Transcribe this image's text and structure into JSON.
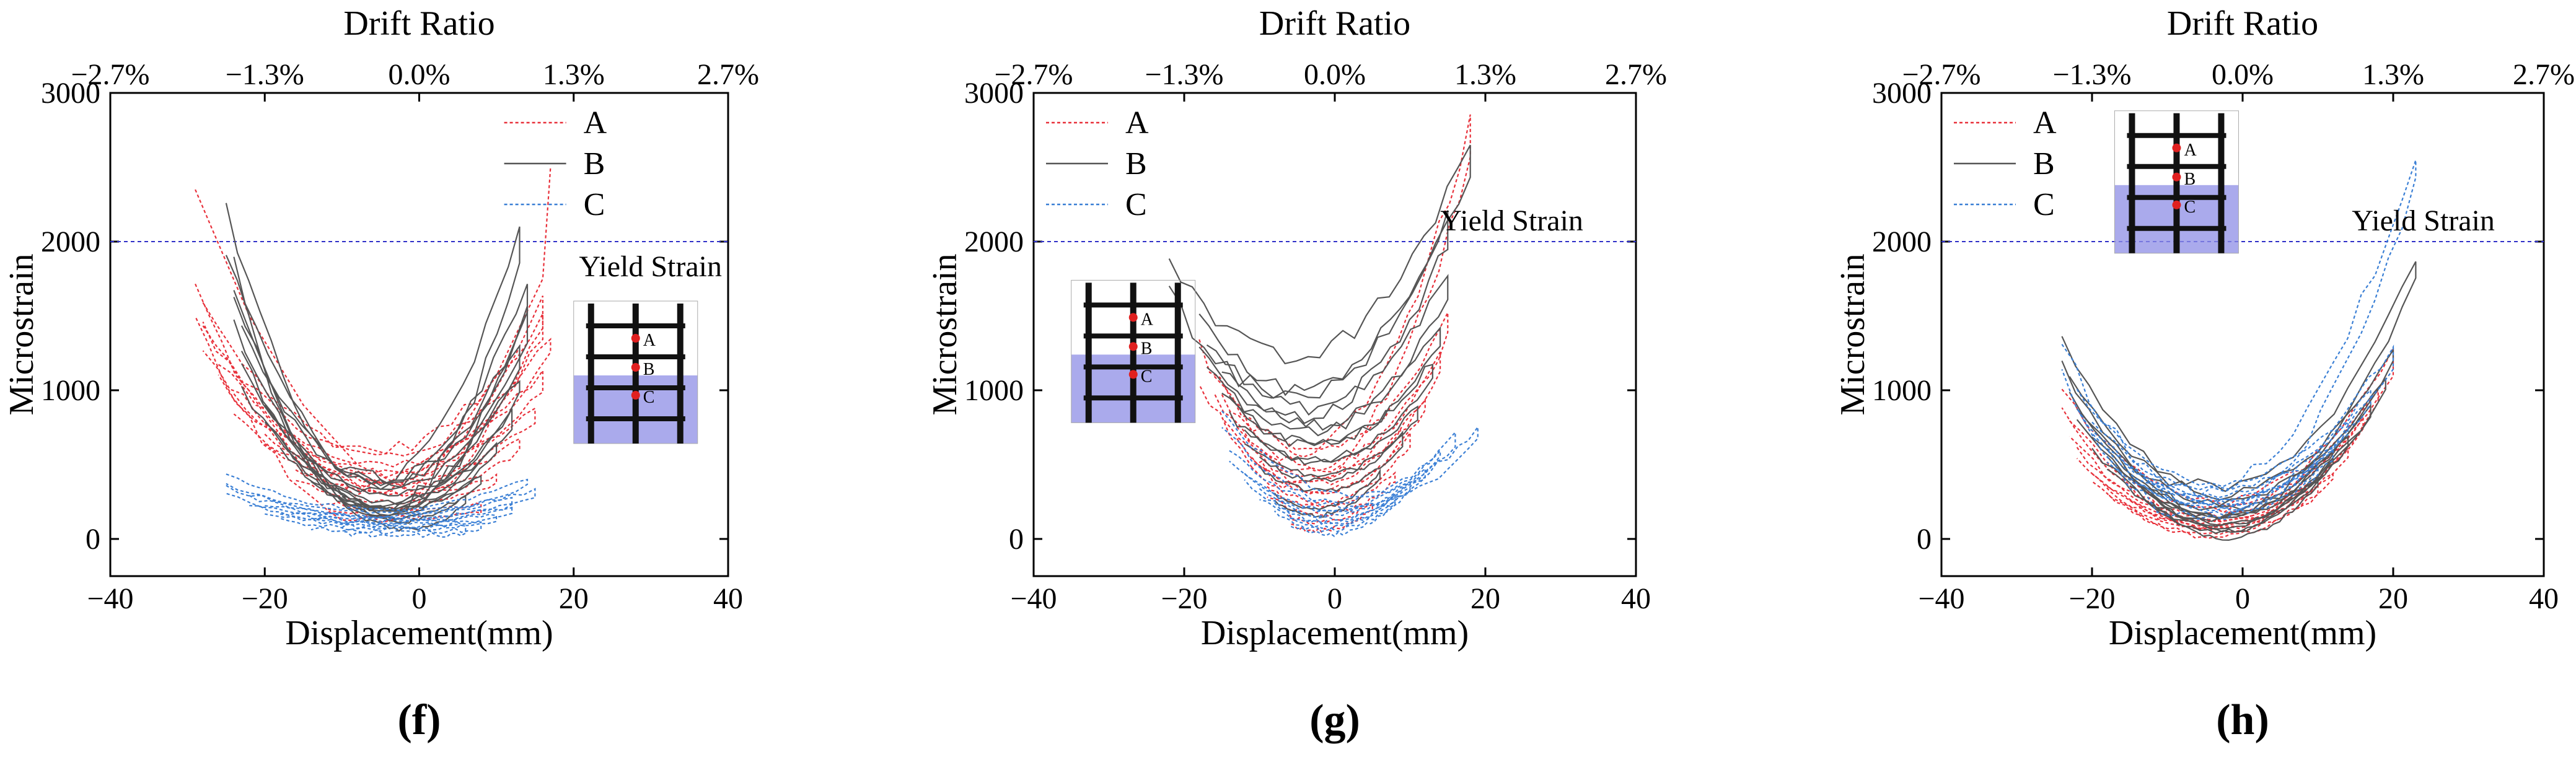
{
  "chart_data": [
    {
      "type": "line",
      "panel_label": "(f)",
      "top_axis_title": "Drift Ratio",
      "top_ticks": [
        "−2.7%",
        "−1.3%",
        "0.0%",
        "1.3%",
        "2.7%"
      ],
      "top_tick_positions": [
        -40,
        -20,
        0,
        20,
        40
      ],
      "xlabel": "Displacement(mm)",
      "ylabel": "Microstrain",
      "xlim": [
        -40,
        40
      ],
      "ylim": [
        -250,
        3000
      ],
      "xticks": [
        -40,
        -20,
        0,
        20,
        40
      ],
      "yticks": [
        0,
        1000,
        2000,
        3000
      ],
      "xtick_labels": [
        "−40",
        "−20",
        "0",
        "20",
        "40"
      ],
      "ytick_labels": [
        "0",
        "1000",
        "2000",
        "3000"
      ],
      "yield_strain": 2000,
      "yield_label": "Yield Strain",
      "legend_position": "top-right",
      "series": [
        {
          "name": "A",
          "color": "#e8303a",
          "style": "dotted",
          "cycles": [
            [
              -29,
              16,
              1700,
              300
            ],
            [
              -28,
              16,
              1600,
              600
            ],
            [
              -28,
              17,
              1450,
              560
            ],
            [
              -26,
              16,
              1200,
              500
            ],
            [
              -24,
              15,
              950,
              450
            ],
            [
              -20,
              13,
              700,
              380
            ],
            [
              -16,
              10,
              450,
              300
            ],
            [
              -12,
              8,
              250,
              200
            ]
          ],
          "envelope": [
            [
              -29,
              2350
            ],
            [
              -22,
              1500
            ],
            [
              -15,
              900
            ],
            [
              -8,
              500
            ],
            [
              0,
              300
            ],
            [
              10,
              1100
            ],
            [
              16,
              1750
            ],
            [
              17,
              2500
            ]
          ]
        },
        {
          "name": "B",
          "color": "#555555",
          "style": "solid",
          "cycles": [
            [
              -25,
              13,
              2200,
              400
            ],
            [
              -24,
              14,
              1850,
              380
            ],
            [
              -24,
              14,
              1600,
              380
            ],
            [
              -23,
              13,
              1400,
              360
            ],
            [
              -23,
              13,
              1150,
              320
            ],
            [
              -20,
              12,
              900,
              300
            ],
            [
              -18,
              10,
              680,
              250
            ],
            [
              -14,
              8,
              450,
              200
            ],
            [
              -10,
              6,
              300,
              120
            ]
          ]
        },
        {
          "name": "C",
          "color": "#3a7fd5",
          "style": "dotted",
          "cycles": [
            [
              -25,
              14,
              430,
              200
            ],
            [
              -25,
              15,
              350,
              180
            ],
            [
              -22,
              12,
              280,
              160
            ],
            [
              -20,
              12,
              230,
              140
            ],
            [
              -18,
              10,
              180,
              120
            ],
            [
              -14,
              8,
              130,
              100
            ],
            [
              -10,
              6,
              90,
              80
            ]
          ]
        }
      ],
      "inset_labels": [
        "A",
        "B",
        "C"
      ],
      "inset_position": "right"
    },
    {
      "type": "line",
      "panel_label": "(g)",
      "top_axis_title": "Drift Ratio",
      "top_ticks": [
        "−2.7%",
        "−1.3%",
        "0.0%",
        "1.3%",
        "2.7%"
      ],
      "top_tick_positions": [
        -40,
        -20,
        0,
        20,
        40
      ],
      "xlabel": "Displacement(mm)",
      "ylabel": "Microstrain",
      "xlim": [
        -40,
        40
      ],
      "ylim": [
        -250,
        3000
      ],
      "xticks": [
        -40,
        -20,
        0,
        20,
        40
      ],
      "yticks": [
        0,
        1000,
        2000,
        3000
      ],
      "xtick_labels": [
        "−40",
        "−20",
        "0",
        "20",
        "40"
      ],
      "ytick_labels": [
        "0",
        "1000",
        "2000",
        "3000"
      ],
      "yield_strain": 2000,
      "yield_label": "Yield Strain",
      "legend_position": "top-left",
      "series": [
        {
          "name": "A",
          "color": "#e8303a",
          "style": "dotted",
          "cycles": [
            [
              -18,
              18,
              1300,
              2800,
              700
            ],
            [
              -16,
              15,
              1100,
              1500,
              600
            ],
            [
              -15,
              14,
              950,
              1250,
              500
            ],
            [
              -13,
              12,
              750,
              950,
              420
            ],
            [
              -11,
              10,
              550,
              700,
              320
            ],
            [
              -9,
              8,
              350,
              450,
              220
            ],
            [
              -6,
              5,
              150,
              250,
              120
            ]
          ]
        },
        {
          "name": "B",
          "color": "#555555",
          "style": "solid",
          "cycles": [
            [
              -22,
              18,
              1900,
              2700,
              1250
            ],
            [
              -18,
              15,
              1500,
              2200,
              1050
            ],
            [
              -17,
              15,
              1350,
              1800,
              900
            ],
            [
              -15,
              14,
              1150,
              1450,
              780
            ],
            [
              -14,
              13,
              950,
              1200,
              650
            ],
            [
              -12,
              11,
              750,
              900,
              520
            ],
            [
              -10,
              9,
              550,
              700,
              400
            ],
            [
              -8,
              6,
              300,
              450,
              220
            ]
          ]
        },
        {
          "name": "C",
          "color": "#3a7fd5",
          "style": "dotted",
          "cycles": [
            [
              -15,
              19,
              850,
              750,
              300
            ],
            [
              -14,
              16,
              600,
              700,
              250
            ],
            [
              -12,
              14,
              450,
              600,
              200
            ],
            [
              -10,
              12,
              330,
              480,
              160
            ],
            [
              -8,
              10,
              230,
              380,
              120
            ],
            [
              -6,
              8,
              150,
              280,
              90
            ]
          ]
        }
      ],
      "inset_labels": [
        "A",
        "B",
        "C"
      ],
      "inset_position": "left"
    },
    {
      "type": "line",
      "panel_label": "(h)",
      "top_axis_title": "Drift Ratio",
      "top_ticks": [
        "−2.7%",
        "−1.3%",
        "0.0%",
        "1.3%",
        "2.7%"
      ],
      "top_tick_positions": [
        -40,
        -20,
        0,
        20,
        40
      ],
      "xlabel": "Displacement(mm)",
      "ylabel": "Microstrain",
      "xlim": [
        -40,
        40
      ],
      "ylim": [
        -250,
        3000
      ],
      "xticks": [
        -40,
        -20,
        0,
        20,
        40
      ],
      "yticks": [
        0,
        1000,
        2000,
        3000
      ],
      "xtick_labels": [
        "−40",
        "−20",
        "0",
        "20",
        "40"
      ],
      "ytick_labels": [
        "0",
        "1000",
        "2000",
        "3000"
      ],
      "yield_strain": 2000,
      "yield_label": "Yield Strain",
      "legend_position": "top-left",
      "series": [
        {
          "name": "A",
          "color": "#e8303a",
          "style": "dotted",
          "cycles": [
            [
              -24,
              20,
              1000,
              1250,
              250
            ],
            [
              -23,
              18,
              800,
              1000,
              200
            ],
            [
              -22,
              16,
              600,
              800,
              160
            ],
            [
              -20,
              14,
              450,
              600,
              120
            ],
            [
              -18,
              12,
              350,
              450,
              90
            ],
            [
              -15,
              10,
              250,
              350,
              70
            ]
          ]
        },
        {
          "name": "B",
          "color": "#555555",
          "style": "solid",
          "cycles": [
            [
              -24,
              23,
              1350,
              1900,
              350
            ],
            [
              -23,
              20,
              1100,
              1300,
              300
            ],
            [
              -22,
              19,
              900,
              1100,
              250
            ],
            [
              -20,
              17,
              700,
              900,
              200
            ],
            [
              -18,
              14,
              550,
              700,
              150
            ],
            [
              -15,
              12,
              420,
              550,
              100
            ],
            [
              -12,
              10,
              300,
              420,
              60
            ]
          ]
        },
        {
          "name": "C",
          "color": "#3a7fd5",
          "style": "dotted",
          "cycles": [
            [
              -24,
              23,
              1300,
              2600,
              400
            ],
            [
              -22,
              20,
              1000,
              1300,
              380
            ],
            [
              -20,
              17,
              780,
              1000,
              340
            ],
            [
              -18,
              14,
              600,
              780,
              300
            ],
            [
              -15,
              12,
              480,
              600,
              260
            ],
            [
              -12,
              10,
              400,
              480,
              230
            ]
          ]
        }
      ],
      "inset_labels": [
        "A",
        "B",
        "C"
      ],
      "inset_position": "top-center"
    }
  ]
}
